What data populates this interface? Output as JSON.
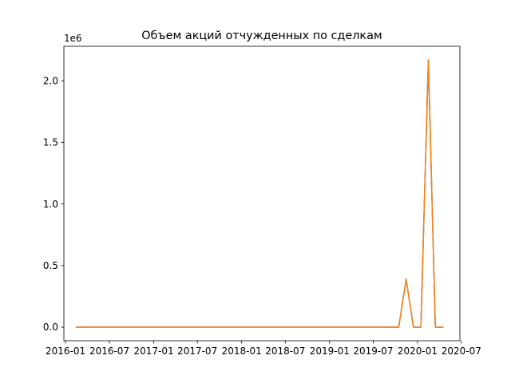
{
  "chart_data": {
    "type": "line",
    "title": "Объем акций отчужденных по сделкам",
    "xlabel": "",
    "ylabel": "",
    "y_scale_label": "1e6",
    "xlim": [
      "2015-12-25",
      "2020-06-25"
    ],
    "ylim": [
      -110000,
      2280000
    ],
    "x_ticks": [
      "2016-01",
      "2016-07",
      "2017-01",
      "2017-07",
      "2018-01",
      "2018-07",
      "2019-01",
      "2019-07",
      "2020-01",
      "2020-07"
    ],
    "x_tick_labels": [
      "2016-01",
      "2016-07",
      "2017-01",
      "2017-07",
      "2018-01",
      "2018-07",
      "2019-01",
      "2019-07",
      "2020-01",
      "2020-07"
    ],
    "y_ticks": [
      0,
      500000,
      1000000,
      1500000,
      2000000
    ],
    "y_tick_labels": [
      "0.0",
      "0.5",
      "1.0",
      "1.5",
      "2.0"
    ],
    "grid": false,
    "series": [
      {
        "color": "#1f77b4",
        "x": [
          "2016-02-15",
          "2019-10-15",
          "2019-11-15",
          "2019-12-15",
          "2020-01-15",
          "2020-02-15",
          "2020-03-15",
          "2020-04-15"
        ],
        "values": [
          0,
          0,
          390000,
          0,
          0,
          2170000,
          0,
          0
        ]
      },
      {
        "color": "#ff7f0e",
        "x": [
          "2016-02-15",
          "2019-10-15",
          "2019-11-15",
          "2019-12-15",
          "2020-01-15",
          "2020-02-15",
          "2020-03-15",
          "2020-04-15"
        ],
        "values": [
          0,
          0,
          390000,
          0,
          0,
          2170000,
          0,
          0
        ]
      }
    ]
  }
}
